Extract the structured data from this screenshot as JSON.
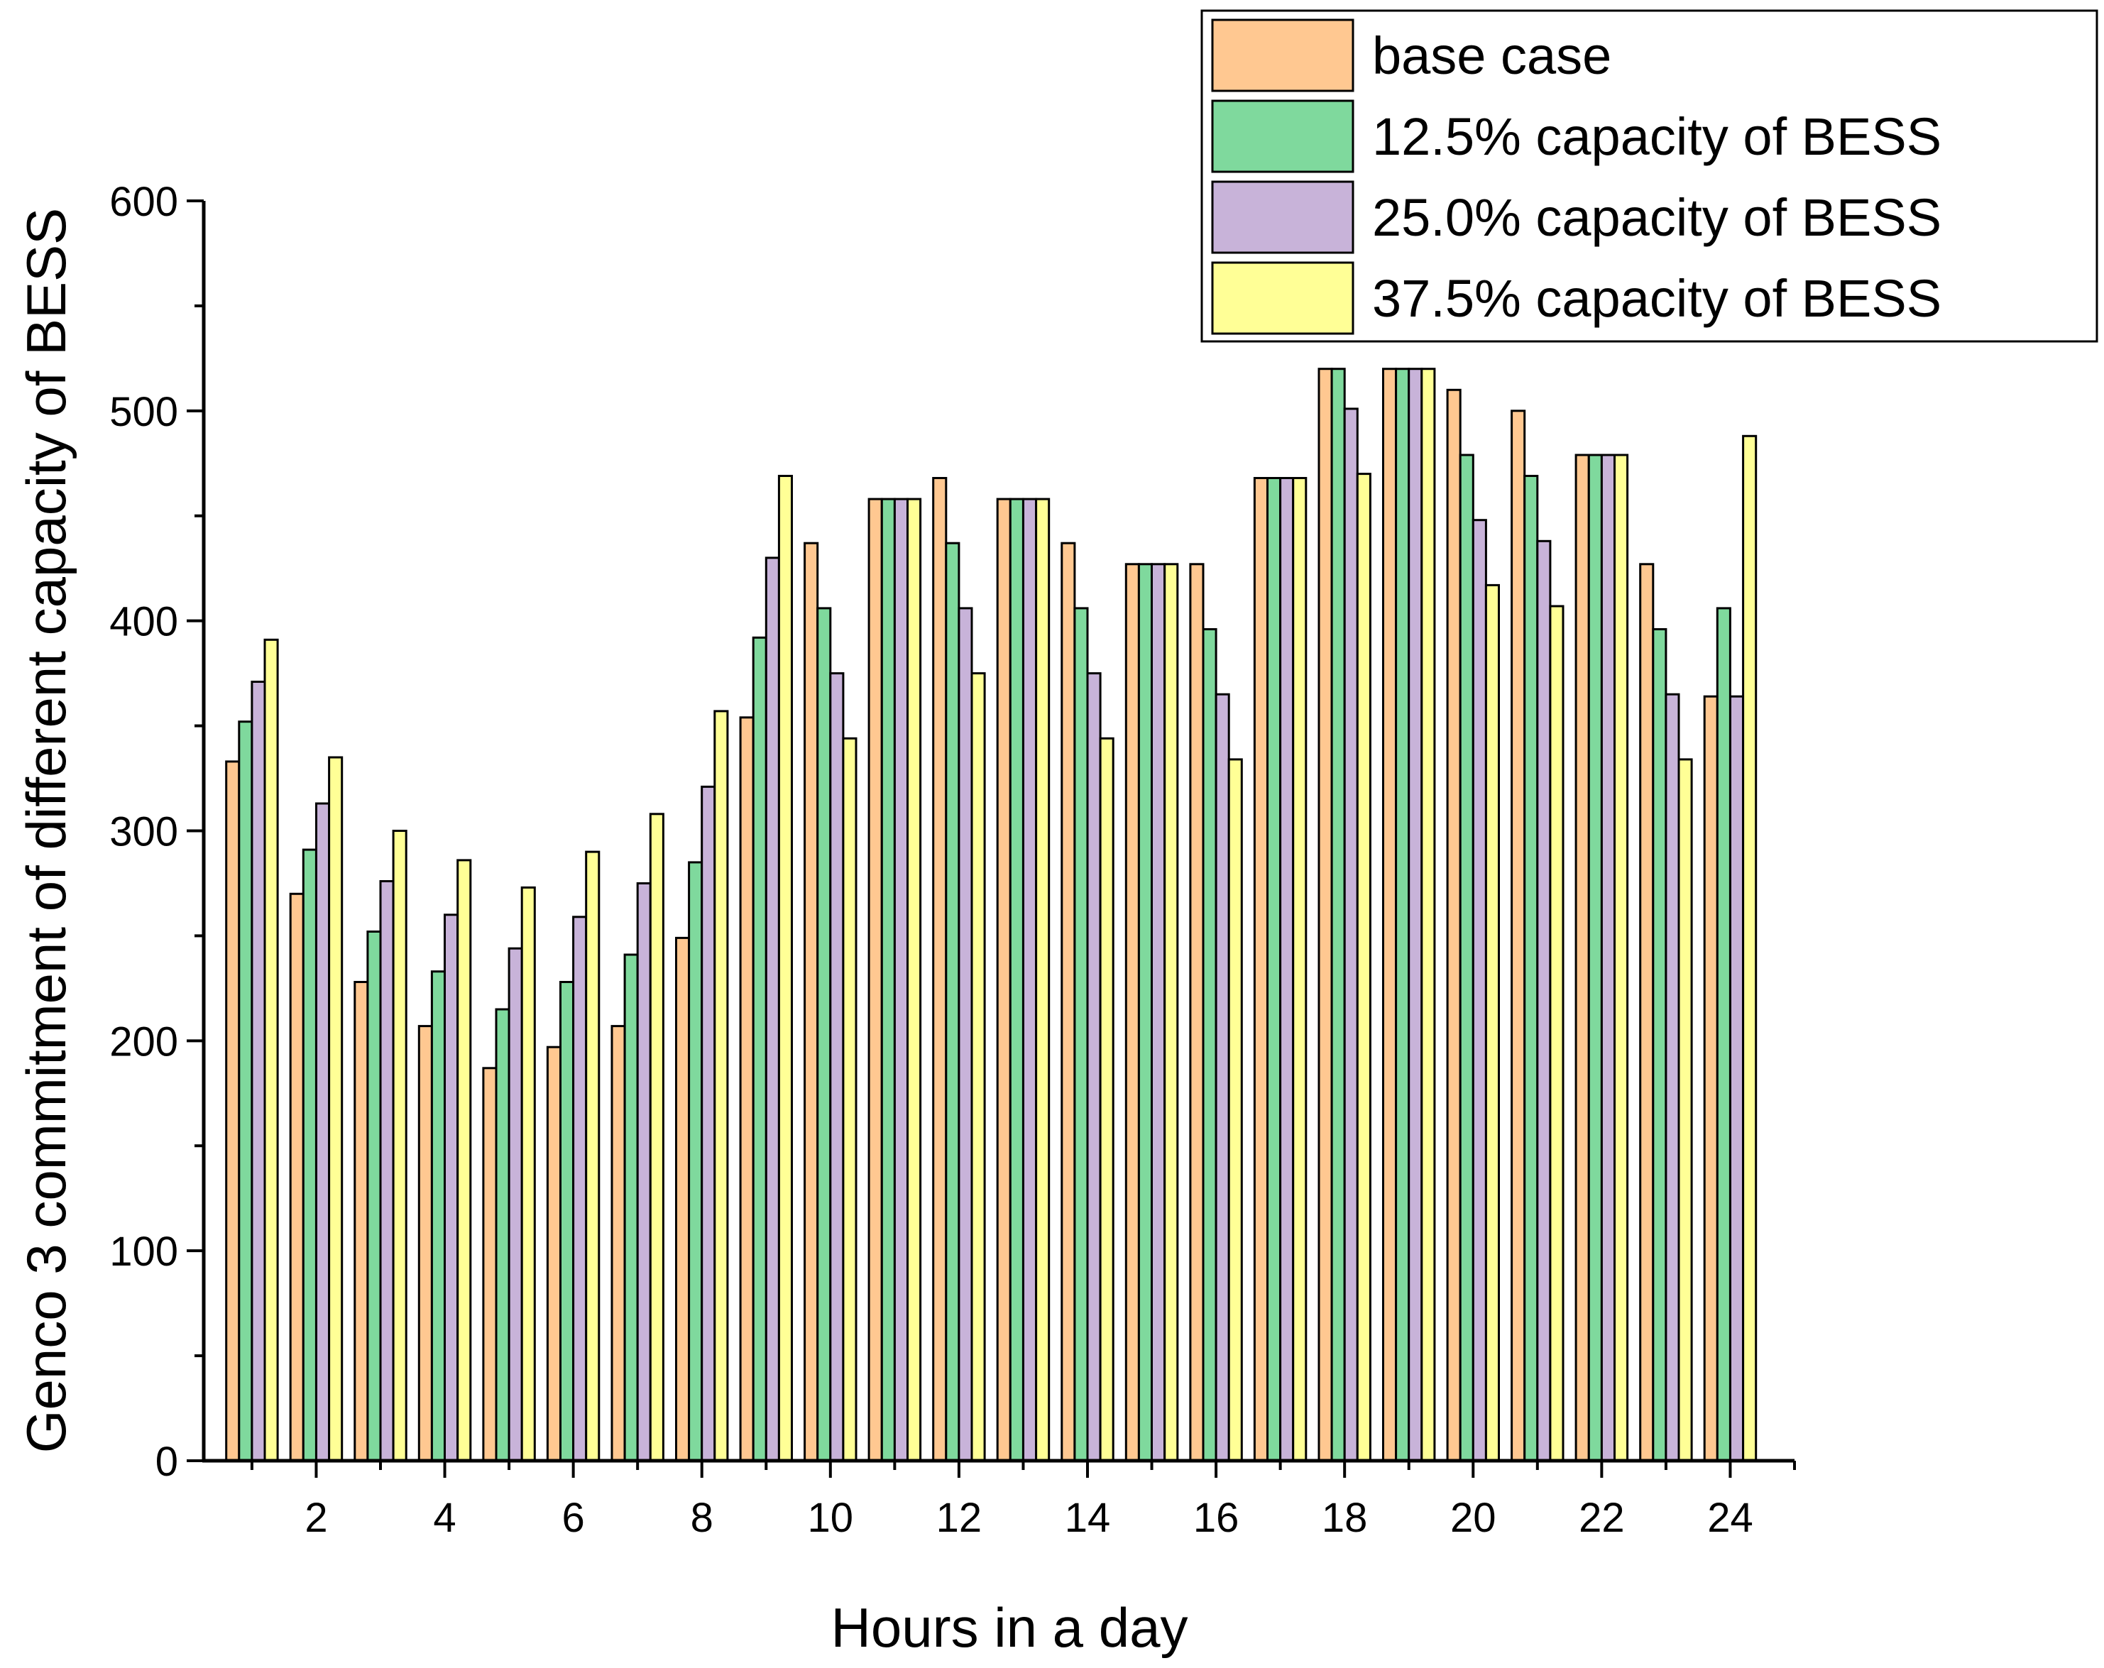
{
  "chart_data": {
    "type": "bar",
    "title": "",
    "xlabel": "Hours in a day",
    "ylabel": "Genco 3 commitment of different capacity of BESS",
    "x_range": [
      0.25,
      25
    ],
    "ylim": [
      0,
      600
    ],
    "yticks": [
      0,
      100,
      200,
      300,
      400,
      500,
      600
    ],
    "ytick_labels": [
      "0",
      "100",
      "200",
      "300",
      "400",
      "500",
      "600"
    ],
    "xticks": [
      2,
      4,
      6,
      8,
      10,
      12,
      14,
      16,
      18,
      20,
      22,
      24
    ],
    "xtick_labels": [
      "2",
      "4",
      "6",
      "8",
      "10",
      "12",
      "14",
      "16",
      "18",
      "20",
      "22",
      "24"
    ],
    "grid": false,
    "legend_position": "top-right",
    "categories": [
      1,
      2,
      3,
      4,
      5,
      6,
      7,
      8,
      9,
      10,
      11,
      12,
      13,
      14,
      15,
      16,
      17,
      18,
      19,
      20,
      21,
      22,
      23,
      24
    ],
    "series": [
      {
        "name": "base case",
        "color": "#FFC891",
        "values": [
          333,
          270,
          228,
          207,
          187,
          197,
          207,
          249,
          354,
          437,
          458,
          468,
          458,
          437,
          427,
          427,
          468,
          520,
          520,
          510,
          500,
          479,
          427,
          364
        ]
      },
      {
        "name": "12.5% capacity of BESS",
        "color": "#7FD99D",
        "values": [
          352,
          291,
          252,
          233,
          215,
          228,
          241,
          285,
          392,
          406,
          458,
          437,
          458,
          406,
          427,
          396,
          468,
          520,
          520,
          479,
          469,
          479,
          396,
          406
        ]
      },
      {
        "name": "25.0% capacity of BESS",
        "color": "#C8B3D9",
        "values": [
          371,
          313,
          276,
          260,
          244,
          259,
          275,
          321,
          430,
          375,
          458,
          406,
          458,
          375,
          427,
          365,
          468,
          501,
          520,
          448,
          438,
          479,
          365,
          364
        ]
      },
      {
        "name": "37.5% capacity of BESS",
        "color": "#FFFF96",
        "values": [
          391,
          335,
          300,
          286,
          273,
          290,
          308,
          357,
          469,
          344,
          458,
          375,
          458,
          344,
          427,
          334,
          468,
          470,
          520,
          417,
          407,
          479,
          334,
          488
        ]
      }
    ]
  }
}
